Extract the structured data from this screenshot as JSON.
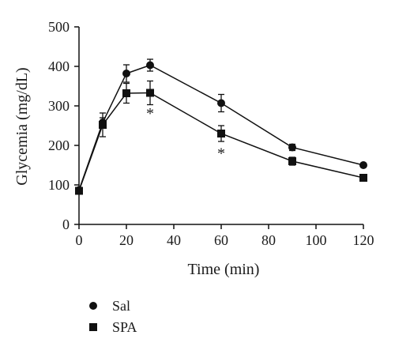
{
  "chart_data": {
    "type": "line",
    "xlabel": "Time (min)",
    "ylabel": "Glycemia (mg/dL)",
    "xlim": [
      0,
      120
    ],
    "ylim": [
      0,
      500
    ],
    "xticks": [
      0,
      20,
      40,
      60,
      80,
      100,
      120
    ],
    "yticks": [
      0,
      100,
      200,
      300,
      400,
      500
    ],
    "grid": false,
    "legend_position": "bottom-left",
    "series": [
      {
        "name": "Sal",
        "marker": "circle",
        "x": [
          0,
          10,
          20,
          30,
          60,
          90,
          120
        ],
        "y": [
          87,
          258,
          382,
          403,
          307,
          195,
          150
        ],
        "error": [
          0,
          12,
          22,
          15,
          22,
          8,
          5
        ]
      },
      {
        "name": "SPA",
        "marker": "square",
        "x": [
          0,
          10,
          20,
          30,
          60,
          90,
          120
        ],
        "y": [
          85,
          252,
          332,
          333,
          230,
          160,
          118
        ],
        "error": [
          0,
          30,
          25,
          30,
          20,
          10,
          6
        ]
      }
    ],
    "annotations": [
      {
        "text": "*",
        "x": 30,
        "y": 288
      },
      {
        "text": "*",
        "x": 60,
        "y": 187
      }
    ]
  }
}
